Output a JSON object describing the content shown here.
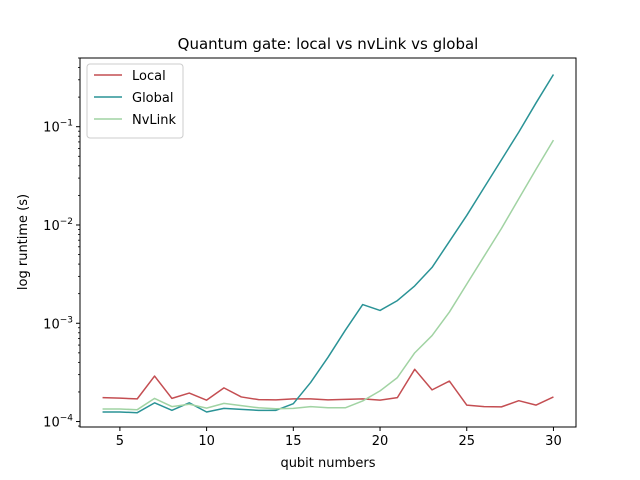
{
  "chart_data": {
    "type": "line",
    "title": "Quantum gate: local vs nvLink vs global",
    "xlabel": "qubit numbers",
    "ylabel": "log runtime (s)",
    "xlim": [
      2.7,
      31.3
    ],
    "ylim": [
      8.8e-05,
      0.5
    ],
    "yscale": "log",
    "grid": false,
    "legend_position": "top-left",
    "x_ticks": [
      5,
      10,
      15,
      20,
      25,
      30
    ],
    "y_ticks": [
      {
        "value": 0.0001,
        "base": "10",
        "exp": "−4"
      },
      {
        "value": 0.001,
        "base": "10",
        "exp": "−3"
      },
      {
        "value": 0.01,
        "base": "10",
        "exp": "−2"
      },
      {
        "value": 0.1,
        "base": "10",
        "exp": "−1"
      }
    ],
    "x": [
      4,
      5,
      6,
      7,
      8,
      9,
      10,
      11,
      12,
      13,
      14,
      15,
      16,
      17,
      18,
      19,
      20,
      21,
      22,
      23,
      24,
      25,
      26,
      27,
      28,
      29,
      30
    ],
    "series": [
      {
        "name": "Local",
        "color": "#c44e52",
        "values": [
          0.000175,
          0.000173,
          0.00017,
          0.00029,
          0.000172,
          0.000195,
          0.000165,
          0.00022,
          0.000178,
          0.000167,
          0.000166,
          0.00017,
          0.00017,
          0.000166,
          0.000168,
          0.00017,
          0.000165,
          0.000175,
          0.00034,
          0.00021,
          0.000258,
          0.000147,
          0.000142,
          0.000141,
          0.000163,
          0.000147,
          0.000178
        ]
      },
      {
        "name": "Global",
        "color": "#2a9396",
        "values": [
          0.000125,
          0.000125,
          0.000123,
          0.000155,
          0.00013,
          0.000155,
          0.000125,
          0.000136,
          0.000133,
          0.00013,
          0.00013,
          0.000152,
          0.00025,
          0.00045,
          0.00085,
          0.00155,
          0.00135,
          0.0017,
          0.0024,
          0.0037,
          0.0068,
          0.0125,
          0.024,
          0.046,
          0.088,
          0.175,
          0.34
        ]
      },
      {
        "name": "NvLink",
        "color": "#a1d3a3",
        "values": [
          0.000134,
          0.000134,
          0.000132,
          0.000172,
          0.000142,
          0.00015,
          0.000137,
          0.000153,
          0.000145,
          0.000138,
          0.000135,
          0.000136,
          0.000142,
          0.000138,
          0.000138,
          0.000162,
          0.000205,
          0.00028,
          0.0005,
          0.00075,
          0.0013,
          0.0025,
          0.0048,
          0.0092,
          0.0185,
          0.037,
          0.073
        ]
      }
    ]
  }
}
